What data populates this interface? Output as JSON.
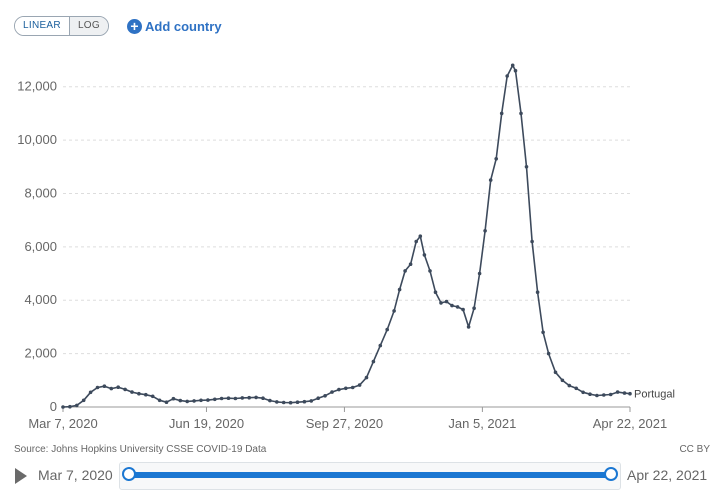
{
  "toolbar": {
    "scale_linear": "LINEAR",
    "scale_log": "LOG",
    "active_scale": "linear",
    "add_country": "Add country"
  },
  "chart_data": {
    "type": "line",
    "title": "",
    "xlabel": "",
    "ylabel": "",
    "ylim": [
      0,
      13000
    ],
    "yticks": [
      0,
      2000,
      4000,
      6000,
      8000,
      10000,
      12000
    ],
    "ytick_labels": [
      "0",
      "2,000",
      "4,000",
      "6,000",
      "8,000",
      "10,000",
      "12,000"
    ],
    "xticks": [
      "2020-03-07",
      "2020-06-19",
      "2020-09-27",
      "2021-01-05",
      "2021-04-22"
    ],
    "xtick_labels": [
      "Mar 7, 2020",
      "Jun 19, 2020",
      "Sep 27, 2020",
      "Jan 5, 2021",
      "Apr 22, 2021"
    ],
    "xlim": [
      "2020-03-07",
      "2021-04-22"
    ],
    "grid": "horizontal dashed",
    "series": [
      {
        "name": "Portugal",
        "color": "#3d4a5c",
        "points": [
          [
            "2020-03-07",
            0
          ],
          [
            "2020-03-12",
            10
          ],
          [
            "2020-03-17",
            60
          ],
          [
            "2020-03-22",
            250
          ],
          [
            "2020-03-27",
            550
          ],
          [
            "2020-04-01",
            730
          ],
          [
            "2020-04-06",
            780
          ],
          [
            "2020-04-11",
            690
          ],
          [
            "2020-04-16",
            740
          ],
          [
            "2020-04-21",
            660
          ],
          [
            "2020-04-26",
            560
          ],
          [
            "2020-05-01",
            500
          ],
          [
            "2020-05-06",
            460
          ],
          [
            "2020-05-11",
            400
          ],
          [
            "2020-05-16",
            250
          ],
          [
            "2020-05-21",
            180
          ],
          [
            "2020-05-26",
            310
          ],
          [
            "2020-05-31",
            240
          ],
          [
            "2020-06-05",
            210
          ],
          [
            "2020-06-10",
            230
          ],
          [
            "2020-06-15",
            250
          ],
          [
            "2020-06-20",
            260
          ],
          [
            "2020-06-25",
            290
          ],
          [
            "2020-06-30",
            320
          ],
          [
            "2020-07-05",
            330
          ],
          [
            "2020-07-10",
            320
          ],
          [
            "2020-07-15",
            340
          ],
          [
            "2020-07-20",
            350
          ],
          [
            "2020-07-25",
            360
          ],
          [
            "2020-07-30",
            330
          ],
          [
            "2020-08-04",
            240
          ],
          [
            "2020-08-09",
            190
          ],
          [
            "2020-08-14",
            170
          ],
          [
            "2020-08-19",
            160
          ],
          [
            "2020-08-24",
            180
          ],
          [
            "2020-08-29",
            200
          ],
          [
            "2020-09-03",
            230
          ],
          [
            "2020-09-08",
            330
          ],
          [
            "2020-09-13",
            420
          ],
          [
            "2020-09-18",
            560
          ],
          [
            "2020-09-23",
            650
          ],
          [
            "2020-09-28",
            700
          ],
          [
            "2020-10-03",
            730
          ],
          [
            "2020-10-08",
            820
          ],
          [
            "2020-10-13",
            1100
          ],
          [
            "2020-10-18",
            1700
          ],
          [
            "2020-10-23",
            2300
          ],
          [
            "2020-10-28",
            2900
          ],
          [
            "2020-11-02",
            3600
          ],
          [
            "2020-11-06",
            4400
          ],
          [
            "2020-11-10",
            5100
          ],
          [
            "2020-11-14",
            5350
          ],
          [
            "2020-11-18",
            6200
          ],
          [
            "2020-11-21",
            6400
          ],
          [
            "2020-11-24",
            5700
          ],
          [
            "2020-11-28",
            5100
          ],
          [
            "2020-12-02",
            4300
          ],
          [
            "2020-12-06",
            3900
          ],
          [
            "2020-12-10",
            3950
          ],
          [
            "2020-12-14",
            3800
          ],
          [
            "2020-12-18",
            3750
          ],
          [
            "2020-12-22",
            3650
          ],
          [
            "2020-12-26",
            3000
          ],
          [
            "2020-12-30",
            3700
          ],
          [
            "2021-01-03",
            5000
          ],
          [
            "2021-01-07",
            6600
          ],
          [
            "2021-01-11",
            8500
          ],
          [
            "2021-01-15",
            9300
          ],
          [
            "2021-01-19",
            11000
          ],
          [
            "2021-01-23",
            12400
          ],
          [
            "2021-01-27",
            12800
          ],
          [
            "2021-01-29",
            12600
          ],
          [
            "2021-02-02",
            11000
          ],
          [
            "2021-02-06",
            9000
          ],
          [
            "2021-02-10",
            6200
          ],
          [
            "2021-02-14",
            4300
          ],
          [
            "2021-02-18",
            2800
          ],
          [
            "2021-02-22",
            2000
          ],
          [
            "2021-02-27",
            1300
          ],
          [
            "2021-03-04",
            1000
          ],
          [
            "2021-03-09",
            800
          ],
          [
            "2021-03-14",
            700
          ],
          [
            "2021-03-19",
            550
          ],
          [
            "2021-03-24",
            480
          ],
          [
            "2021-03-29",
            430
          ],
          [
            "2021-04-03",
            450
          ],
          [
            "2021-04-08",
            470
          ],
          [
            "2021-04-13",
            560
          ],
          [
            "2021-04-18",
            520
          ],
          [
            "2021-04-22",
            500
          ]
        ]
      }
    ],
    "end_label": "Portugal"
  },
  "footer": {
    "source": "Source: Johns Hopkins University CSSE COVID-19 Data",
    "license": "CC BY"
  },
  "timeline": {
    "start_label": "Mar 7, 2020",
    "end_label": "Apr 22, 2021"
  }
}
